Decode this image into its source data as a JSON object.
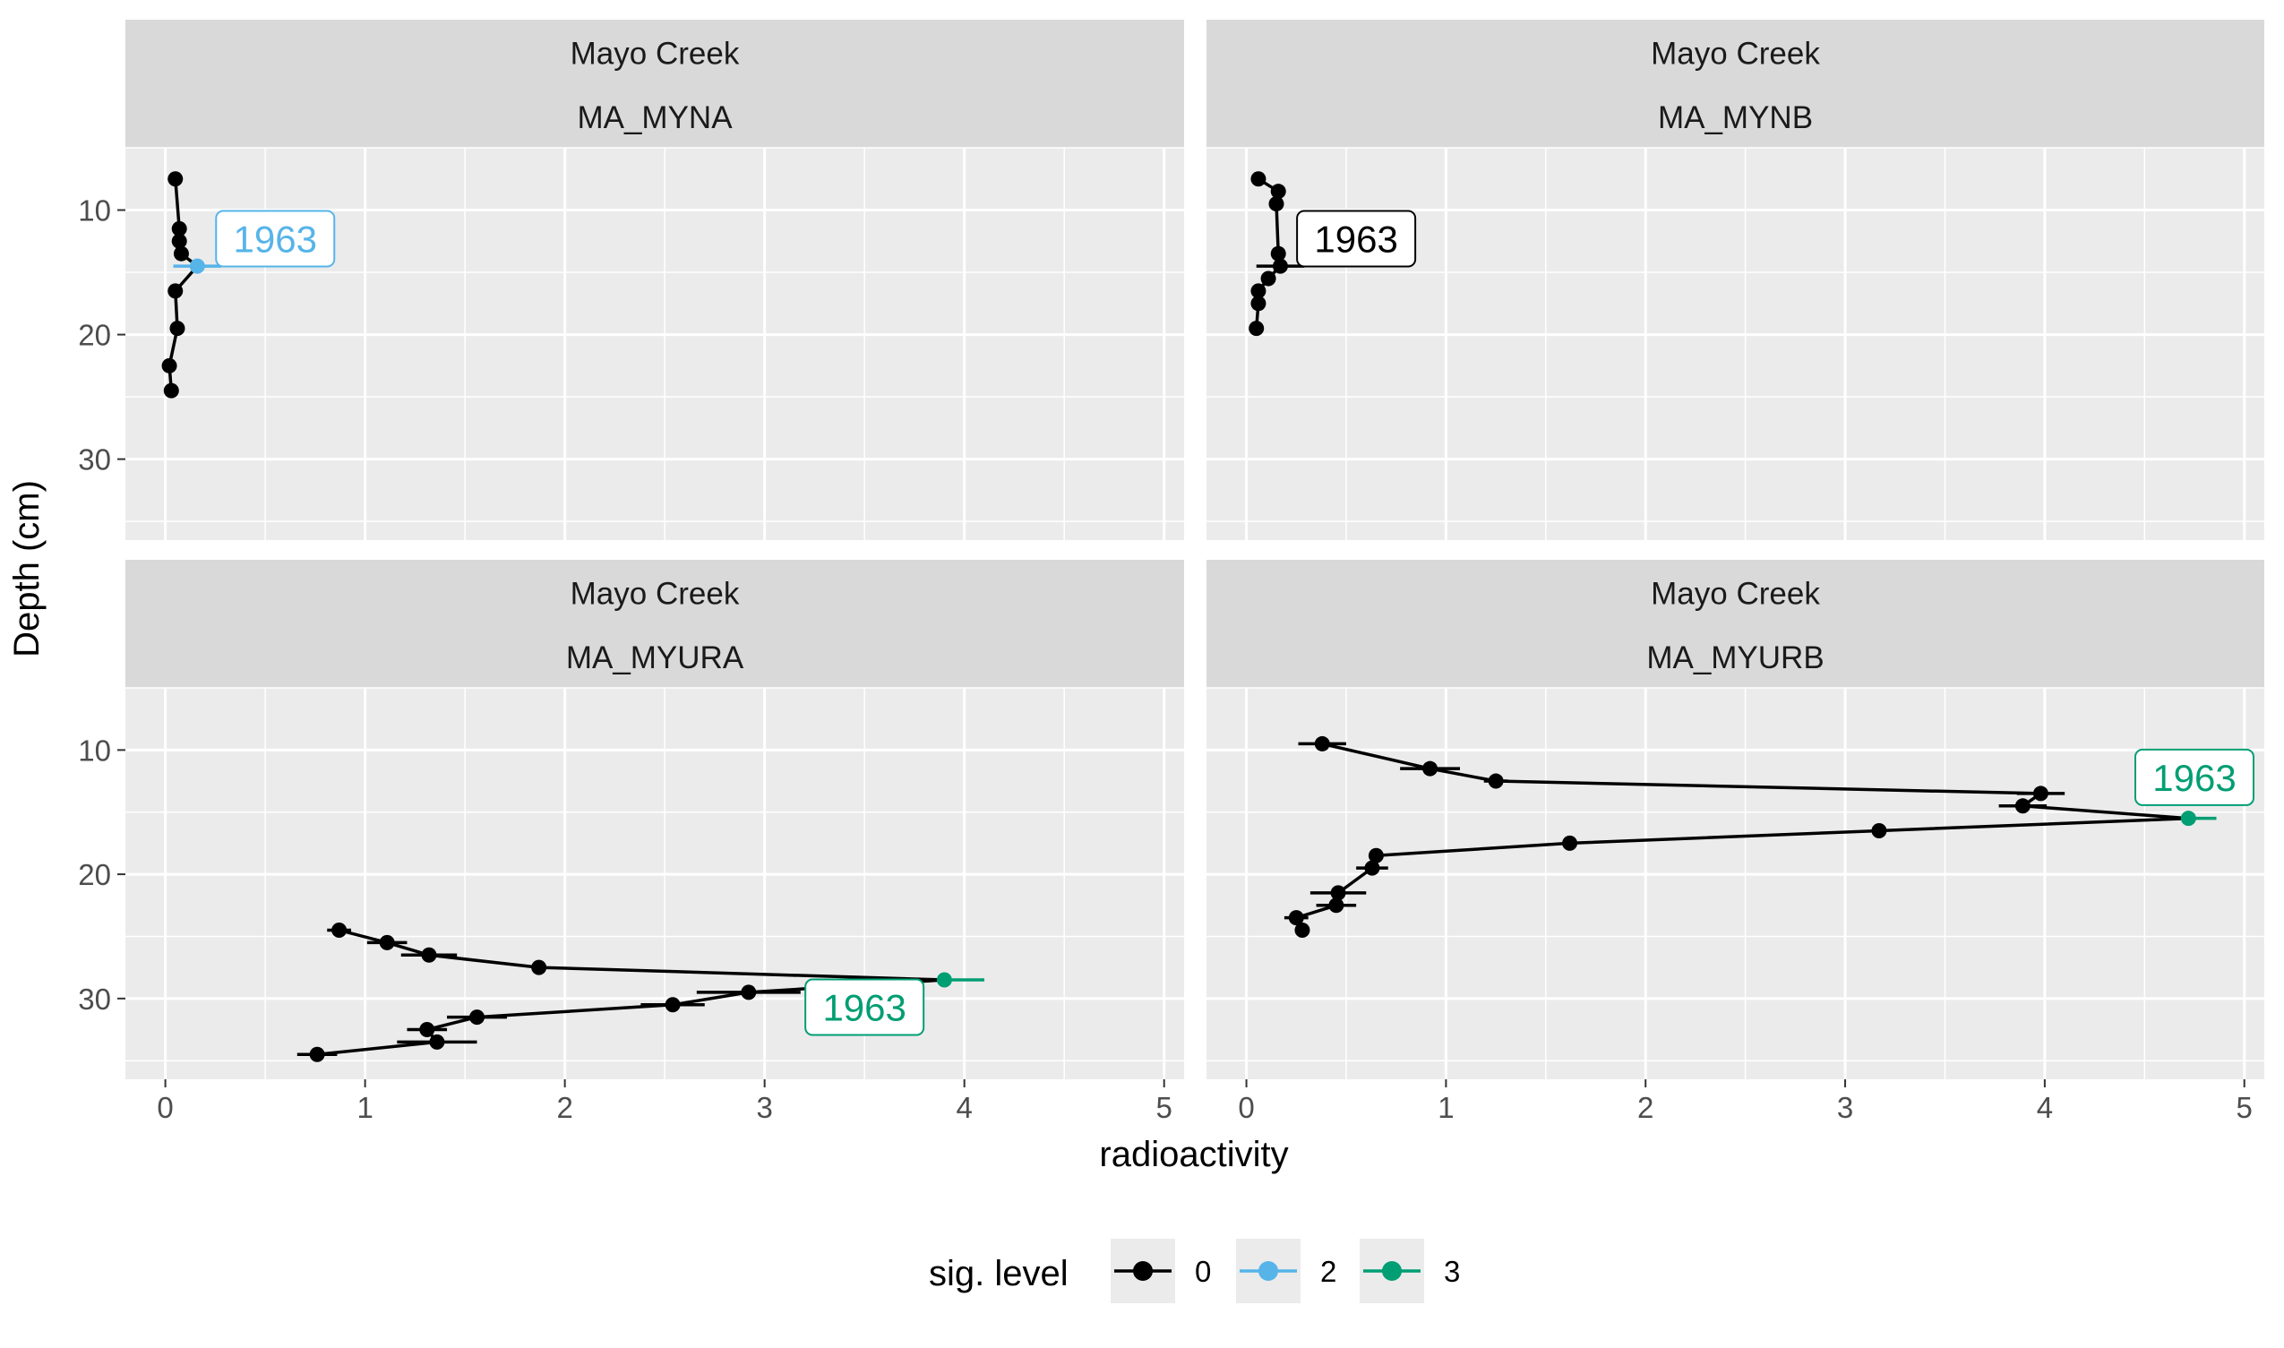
{
  "chart_data": {
    "type": "line",
    "xlabel": "radioactivity",
    "ylabel": "Depth (cm)",
    "xlim": [
      -0.2,
      5.1
    ],
    "ylim": [
      36.5,
      5
    ],
    "y_reversed": true,
    "x_ticks": [
      0,
      1,
      2,
      3,
      4,
      5
    ],
    "y_ticks": [
      10,
      20,
      30
    ],
    "grid": true,
    "legend": {
      "title": "sig. level",
      "placement": "bottom",
      "entries": [
        {
          "label": "0",
          "color": "#000000"
        },
        {
          "label": "2",
          "color": "#56B4E9"
        },
        {
          "label": "3",
          "color": "#009E73"
        }
      ]
    },
    "panels": [
      {
        "strip_top": "Mayo Creek",
        "strip_bottom": "MA_MYNA",
        "points": [
          {
            "depth": 7.5,
            "value": 0.05,
            "err": 0.0,
            "sig": "0"
          },
          {
            "depth": 11.5,
            "value": 0.07,
            "err": 0.0,
            "sig": "0"
          },
          {
            "depth": 12.5,
            "value": 0.07,
            "err": 0.0,
            "sig": "0"
          },
          {
            "depth": 13.5,
            "value": 0.08,
            "err": 0.0,
            "sig": "0"
          },
          {
            "depth": 14.5,
            "value": 0.16,
            "err": 0.12,
            "sig": "2"
          },
          {
            "depth": 16.5,
            "value": 0.05,
            "err": 0.0,
            "sig": "0"
          },
          {
            "depth": 19.5,
            "value": 0.06,
            "err": 0.0,
            "sig": "0"
          },
          {
            "depth": 22.5,
            "value": 0.02,
            "err": 0.0,
            "sig": "0"
          },
          {
            "depth": 24.5,
            "value": 0.03,
            "err": 0.0,
            "sig": "0"
          }
        ],
        "annotation": {
          "text": "1963",
          "x": 0.55,
          "y": 12.3,
          "sig": "2"
        }
      },
      {
        "strip_top": "Mayo Creek",
        "strip_bottom": "MA_MYNB",
        "points": [
          {
            "depth": 7.5,
            "value": 0.06,
            "err": 0.0,
            "sig": "0"
          },
          {
            "depth": 8.5,
            "value": 0.16,
            "err": 0.0,
            "sig": "0"
          },
          {
            "depth": 9.5,
            "value": 0.15,
            "err": 0.0,
            "sig": "0"
          },
          {
            "depth": 13.5,
            "value": 0.16,
            "err": 0.0,
            "sig": "0"
          },
          {
            "depth": 14.5,
            "value": 0.17,
            "err": 0.12,
            "sig": "0"
          },
          {
            "depth": 15.5,
            "value": 0.11,
            "err": 0.0,
            "sig": "0"
          },
          {
            "depth": 16.5,
            "value": 0.06,
            "err": 0.0,
            "sig": "0"
          },
          {
            "depth": 17.5,
            "value": 0.06,
            "err": 0.0,
            "sig": "0"
          },
          {
            "depth": 19.5,
            "value": 0.05,
            "err": 0.0,
            "sig": "0"
          }
        ],
        "annotation": {
          "text": "1963",
          "x": 0.55,
          "y": 12.3,
          "sig": "0"
        }
      },
      {
        "strip_top": "Mayo Creek",
        "strip_bottom": "MA_MYURA",
        "points": [
          {
            "depth": 24.5,
            "value": 0.87,
            "err": 0.06,
            "sig": "0"
          },
          {
            "depth": 25.5,
            "value": 1.11,
            "err": 0.1,
            "sig": "0"
          },
          {
            "depth": 26.5,
            "value": 1.32,
            "err": 0.14,
            "sig": "0"
          },
          {
            "depth": 27.5,
            "value": 1.87,
            "err": 0.0,
            "sig": "0"
          },
          {
            "depth": 28.5,
            "value": 3.9,
            "err": 0.2,
            "sig": "3"
          },
          {
            "depth": 29.5,
            "value": 2.92,
            "err": 0.26,
            "sig": "0"
          },
          {
            "depth": 30.5,
            "value": 2.54,
            "err": 0.16,
            "sig": "0"
          },
          {
            "depth": 31.5,
            "value": 1.56,
            "err": 0.15,
            "sig": "0"
          },
          {
            "depth": 32.5,
            "value": 1.31,
            "err": 0.1,
            "sig": "0"
          },
          {
            "depth": 33.5,
            "value": 1.36,
            "err": 0.2,
            "sig": "0"
          },
          {
            "depth": 34.5,
            "value": 0.76,
            "err": 0.1,
            "sig": "0"
          }
        ],
        "annotation": {
          "text": "1963",
          "x": 3.5,
          "y": 30.7,
          "sig": "3"
        }
      },
      {
        "strip_top": "Mayo Creek",
        "strip_bottom": "MA_MYURB",
        "points": [
          {
            "depth": 9.5,
            "value": 0.38,
            "err": 0.12,
            "sig": "0"
          },
          {
            "depth": 11.5,
            "value": 0.92,
            "err": 0.15,
            "sig": "0"
          },
          {
            "depth": 12.5,
            "value": 1.25,
            "err": 0.06,
            "sig": "0"
          },
          {
            "depth": 13.5,
            "value": 3.98,
            "err": 0.12,
            "sig": "0"
          },
          {
            "depth": 14.5,
            "value": 3.89,
            "err": 0.12,
            "sig": "0"
          },
          {
            "depth": 15.5,
            "value": 4.72,
            "err": 0.14,
            "sig": "3"
          },
          {
            "depth": 16.5,
            "value": 3.17,
            "err": 0.0,
            "sig": "0"
          },
          {
            "depth": 17.5,
            "value": 1.62,
            "err": 0.0,
            "sig": "0"
          },
          {
            "depth": 18.5,
            "value": 0.65,
            "err": 0.0,
            "sig": "0"
          },
          {
            "depth": 19.5,
            "value": 0.63,
            "err": 0.08,
            "sig": "0"
          },
          {
            "depth": 21.5,
            "value": 0.46,
            "err": 0.14,
            "sig": "0"
          },
          {
            "depth": 22.5,
            "value": 0.45,
            "err": 0.1,
            "sig": "0"
          },
          {
            "depth": 23.5,
            "value": 0.25,
            "err": 0.06,
            "sig": "0"
          },
          {
            "depth": 24.5,
            "value": 0.28,
            "err": 0.0,
            "sig": "0"
          }
        ],
        "annotation": {
          "text": "1963",
          "x": 4.75,
          "y": 12.2,
          "sig": "3"
        }
      }
    ]
  }
}
